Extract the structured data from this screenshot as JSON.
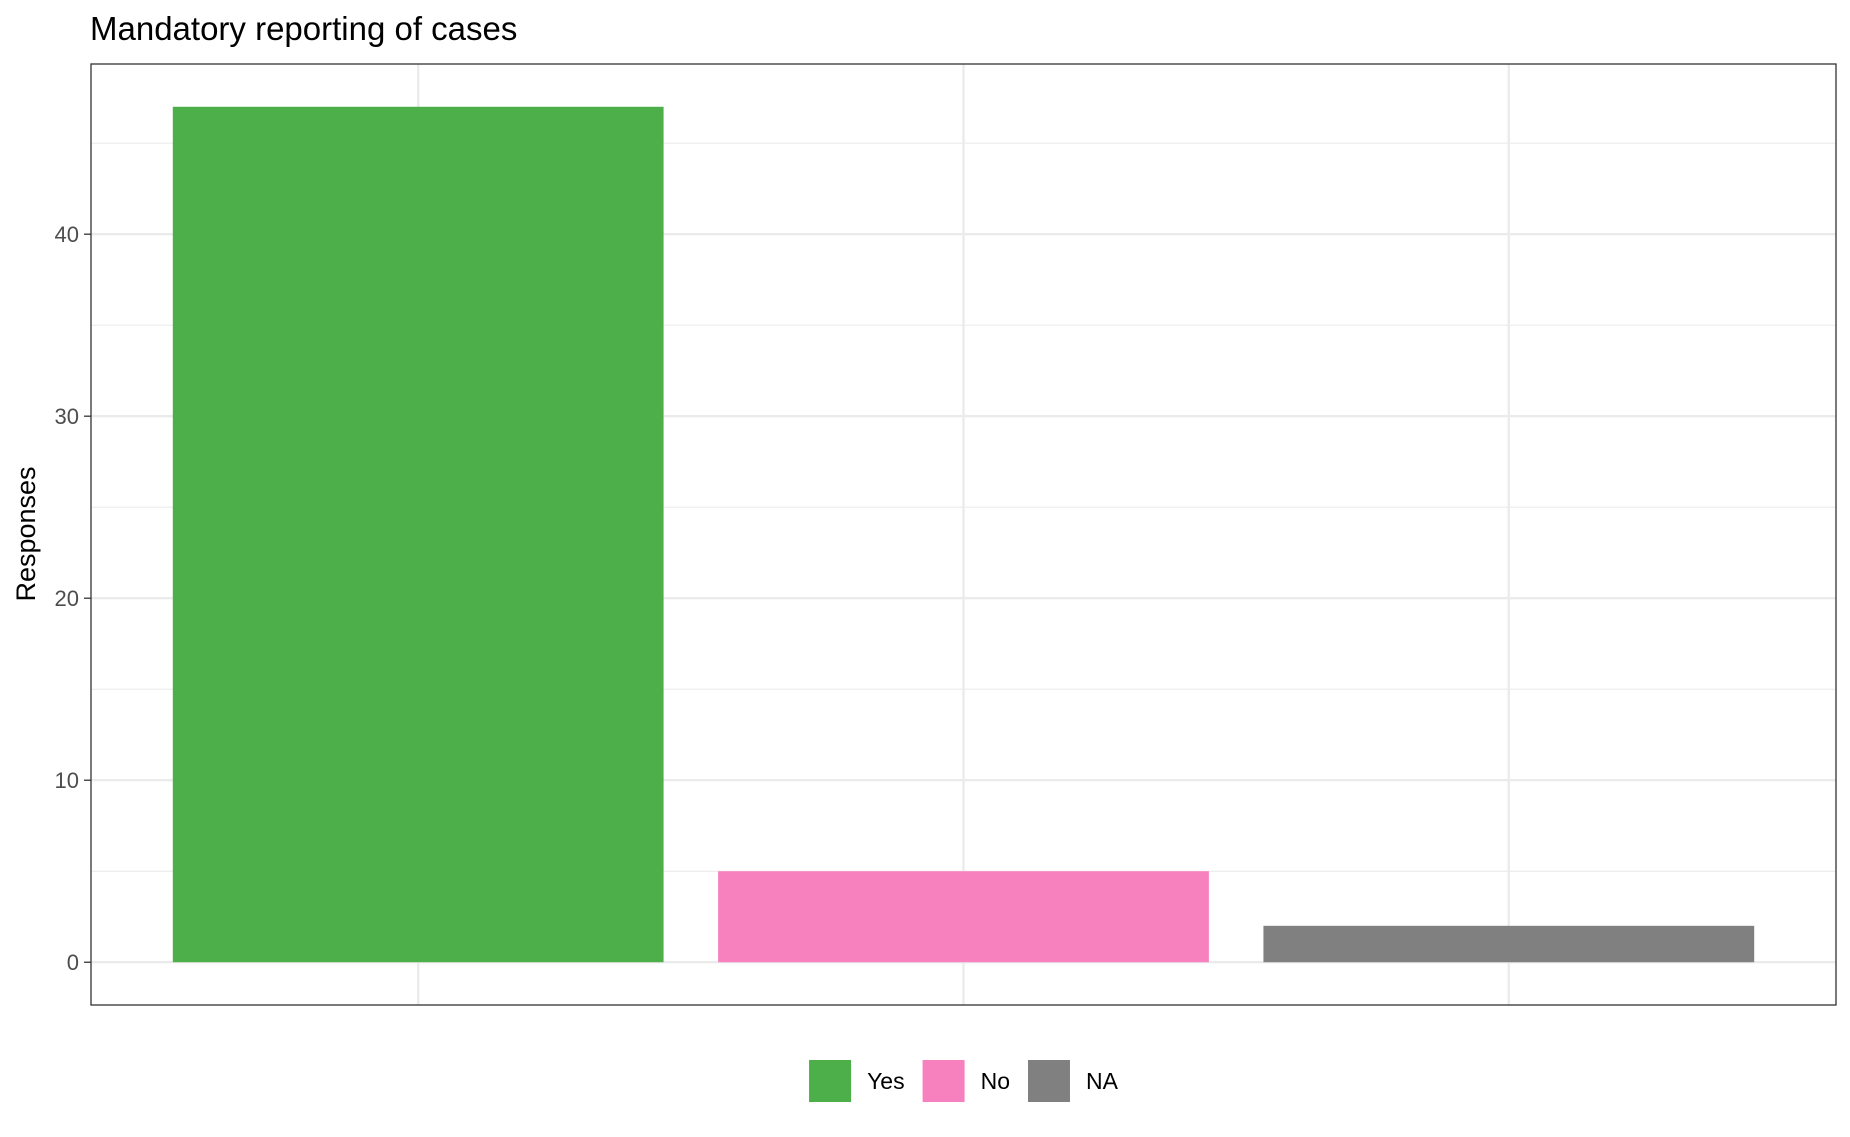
{
  "chart_data": {
    "type": "bar",
    "title": "Mandatory reporting of cases",
    "xlabel": "",
    "ylabel": "Responses",
    "categories": [
      "Yes",
      "No",
      "NA"
    ],
    "values": [
      47,
      5,
      2
    ],
    "colors": [
      "#4daf4a",
      "#f781bf",
      "#808080"
    ],
    "ylim": [
      -2.35,
      49.35
    ],
    "yticks": [
      0,
      10,
      20,
      30,
      40
    ],
    "grid": true,
    "legend": {
      "position": "bottom",
      "entries": [
        "Yes",
        "No",
        "NA"
      ]
    },
    "x_tick_labels_shown": false
  }
}
